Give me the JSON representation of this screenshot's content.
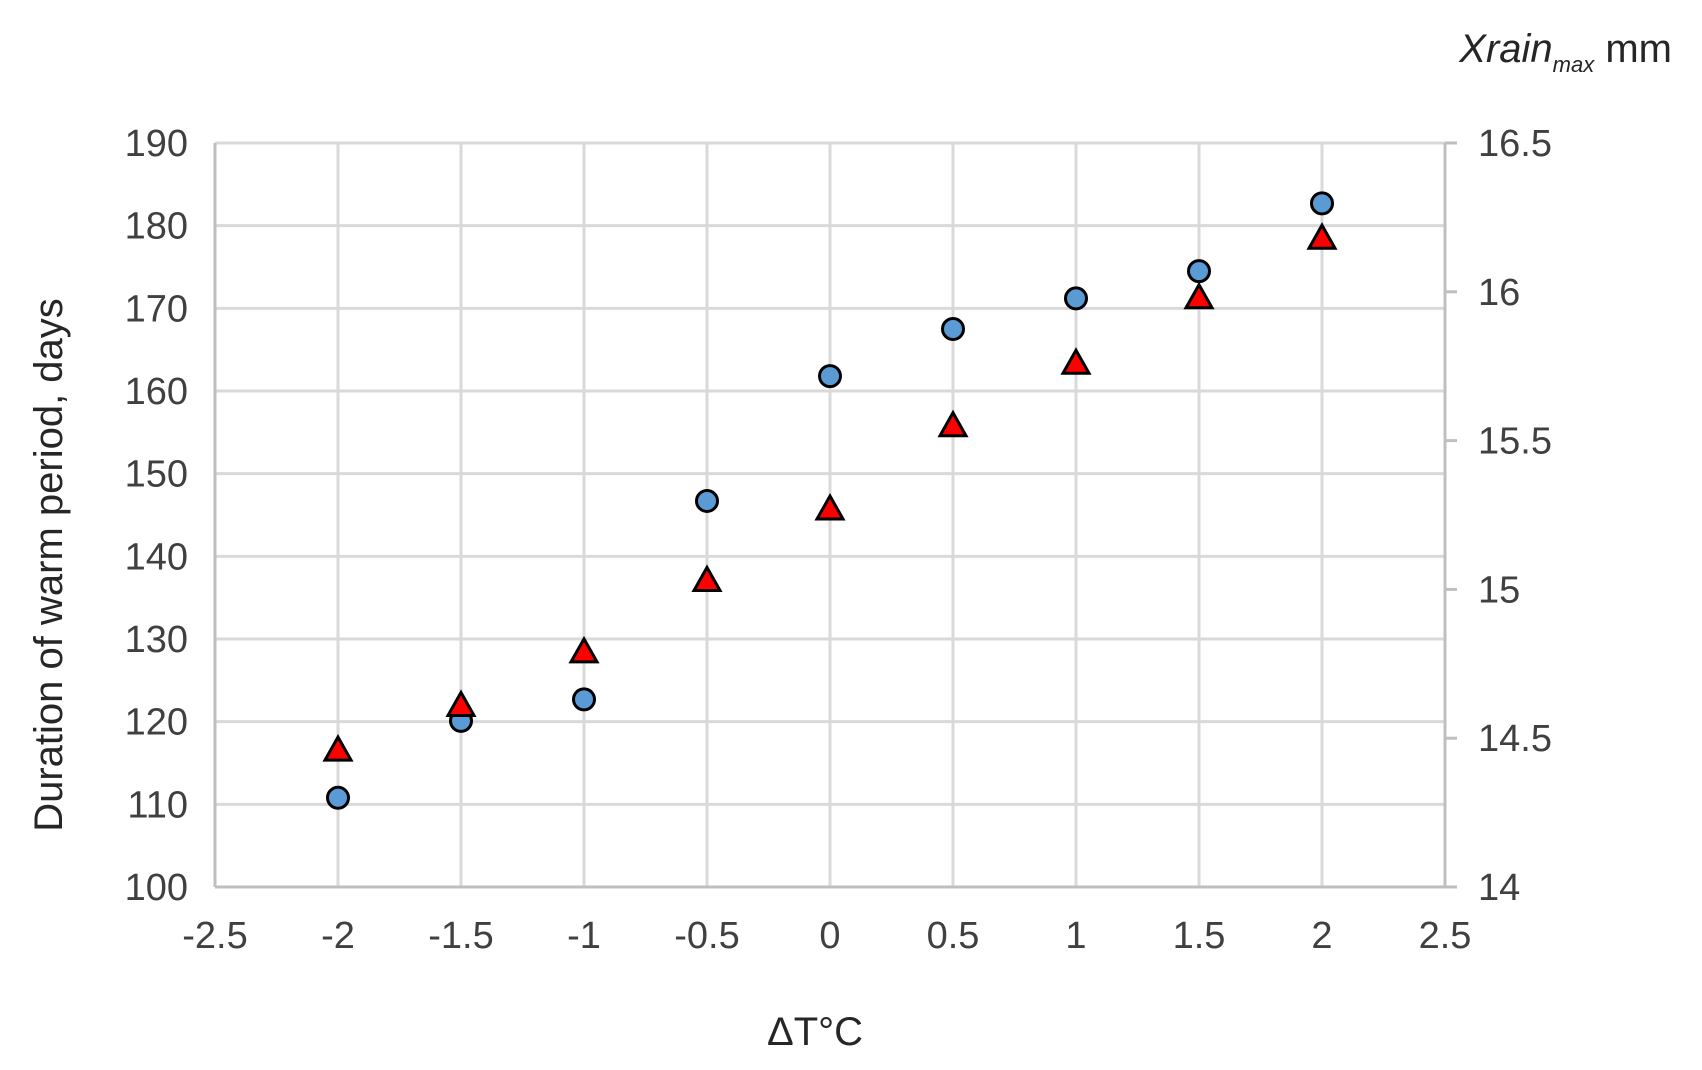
{
  "chart_data": {
    "type": "scatter",
    "xlabel": "ΔT°C",
    "ylabel": "Duration of warm period, days",
    "y2label": {
      "main": "Xrain",
      "subscript": "max",
      "unit": " mm"
    },
    "xlim": [
      -2.5,
      2.5
    ],
    "ylim": [
      100,
      190
    ],
    "y2lim": [
      14,
      16.5
    ],
    "x_ticks": [
      "-2.5",
      "-2",
      "-1.5",
      "-1",
      "-0.5",
      "0",
      "0.5",
      "1",
      "1.5",
      "2",
      "2.5"
    ],
    "y_ticks": [
      "100",
      "110",
      "120",
      "130",
      "140",
      "150",
      "160",
      "170",
      "180",
      "190"
    ],
    "y2_ticks": [
      "14",
      "14.5",
      "15",
      "15.5",
      "16",
      "16.5"
    ],
    "grid": true,
    "legend": "none",
    "series": [
      {
        "axis": "left",
        "marker": "circle",
        "color": "#5b9bd5",
        "x": [
          -2,
          -1.5,
          -1,
          -0.5,
          0,
          0.5,
          1,
          1.5,
          2
        ],
        "y": [
          110.8,
          120.1,
          122.7,
          146.7,
          161.8,
          167.5,
          171.2,
          174.5,
          182.7
        ]
      },
      {
        "axis": "right",
        "marker": "triangle",
        "color": "#ff0000",
        "x": [
          -2,
          -1.5,
          -1,
          -0.5,
          0,
          0.5,
          1,
          1.5,
          2
        ],
        "y": [
          14.46,
          14.61,
          14.79,
          15.03,
          15.27,
          15.55,
          15.76,
          15.98,
          16.18
        ]
      }
    ]
  }
}
